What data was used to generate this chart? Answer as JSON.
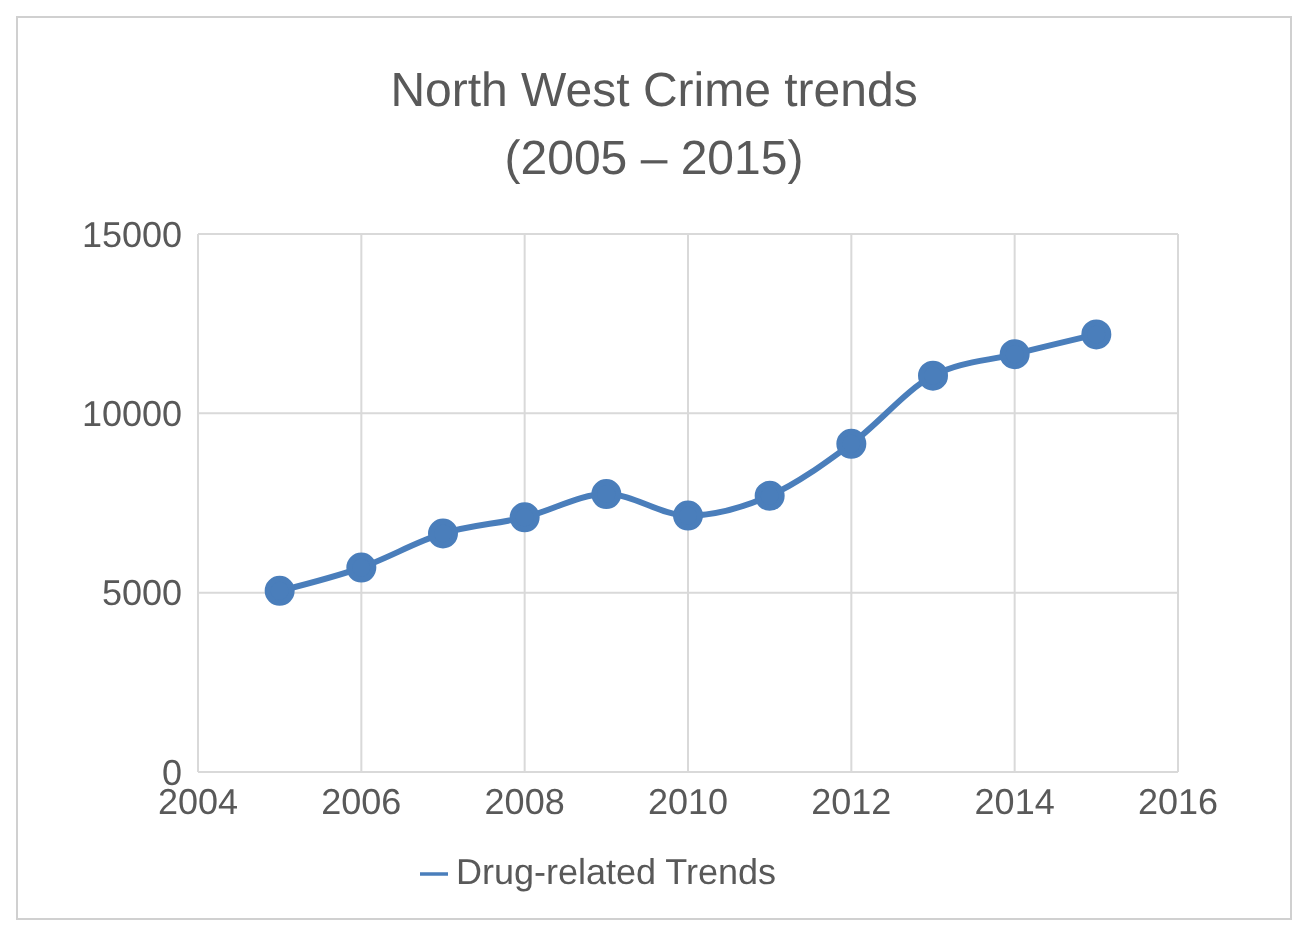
{
  "chart_data": {
    "type": "line",
    "title": "North West Crime trends\n(2005 – 2015)",
    "x": [
      2005,
      2006,
      2007,
      2008,
      2009,
      2010,
      2011,
      2012,
      2013,
      2014,
      2015
    ],
    "series": [
      {
        "name": "Drug-related Trends",
        "color": "#4a7ebb",
        "values": [
          5050,
          5700,
          6650,
          7100,
          7750,
          7150,
          7700,
          9150,
          11050,
          11650,
          12200
        ]
      }
    ],
    "xlim": [
      2004,
      2016
    ],
    "xticks": [
      2004,
      2006,
      2008,
      2010,
      2012,
      2014,
      2016
    ],
    "ylim": [
      0,
      15000
    ],
    "yticks": [
      0,
      5000,
      10000,
      15000
    ],
    "grid": true,
    "legend": "bottom",
    "marker": "circle",
    "line_style": "solid"
  }
}
